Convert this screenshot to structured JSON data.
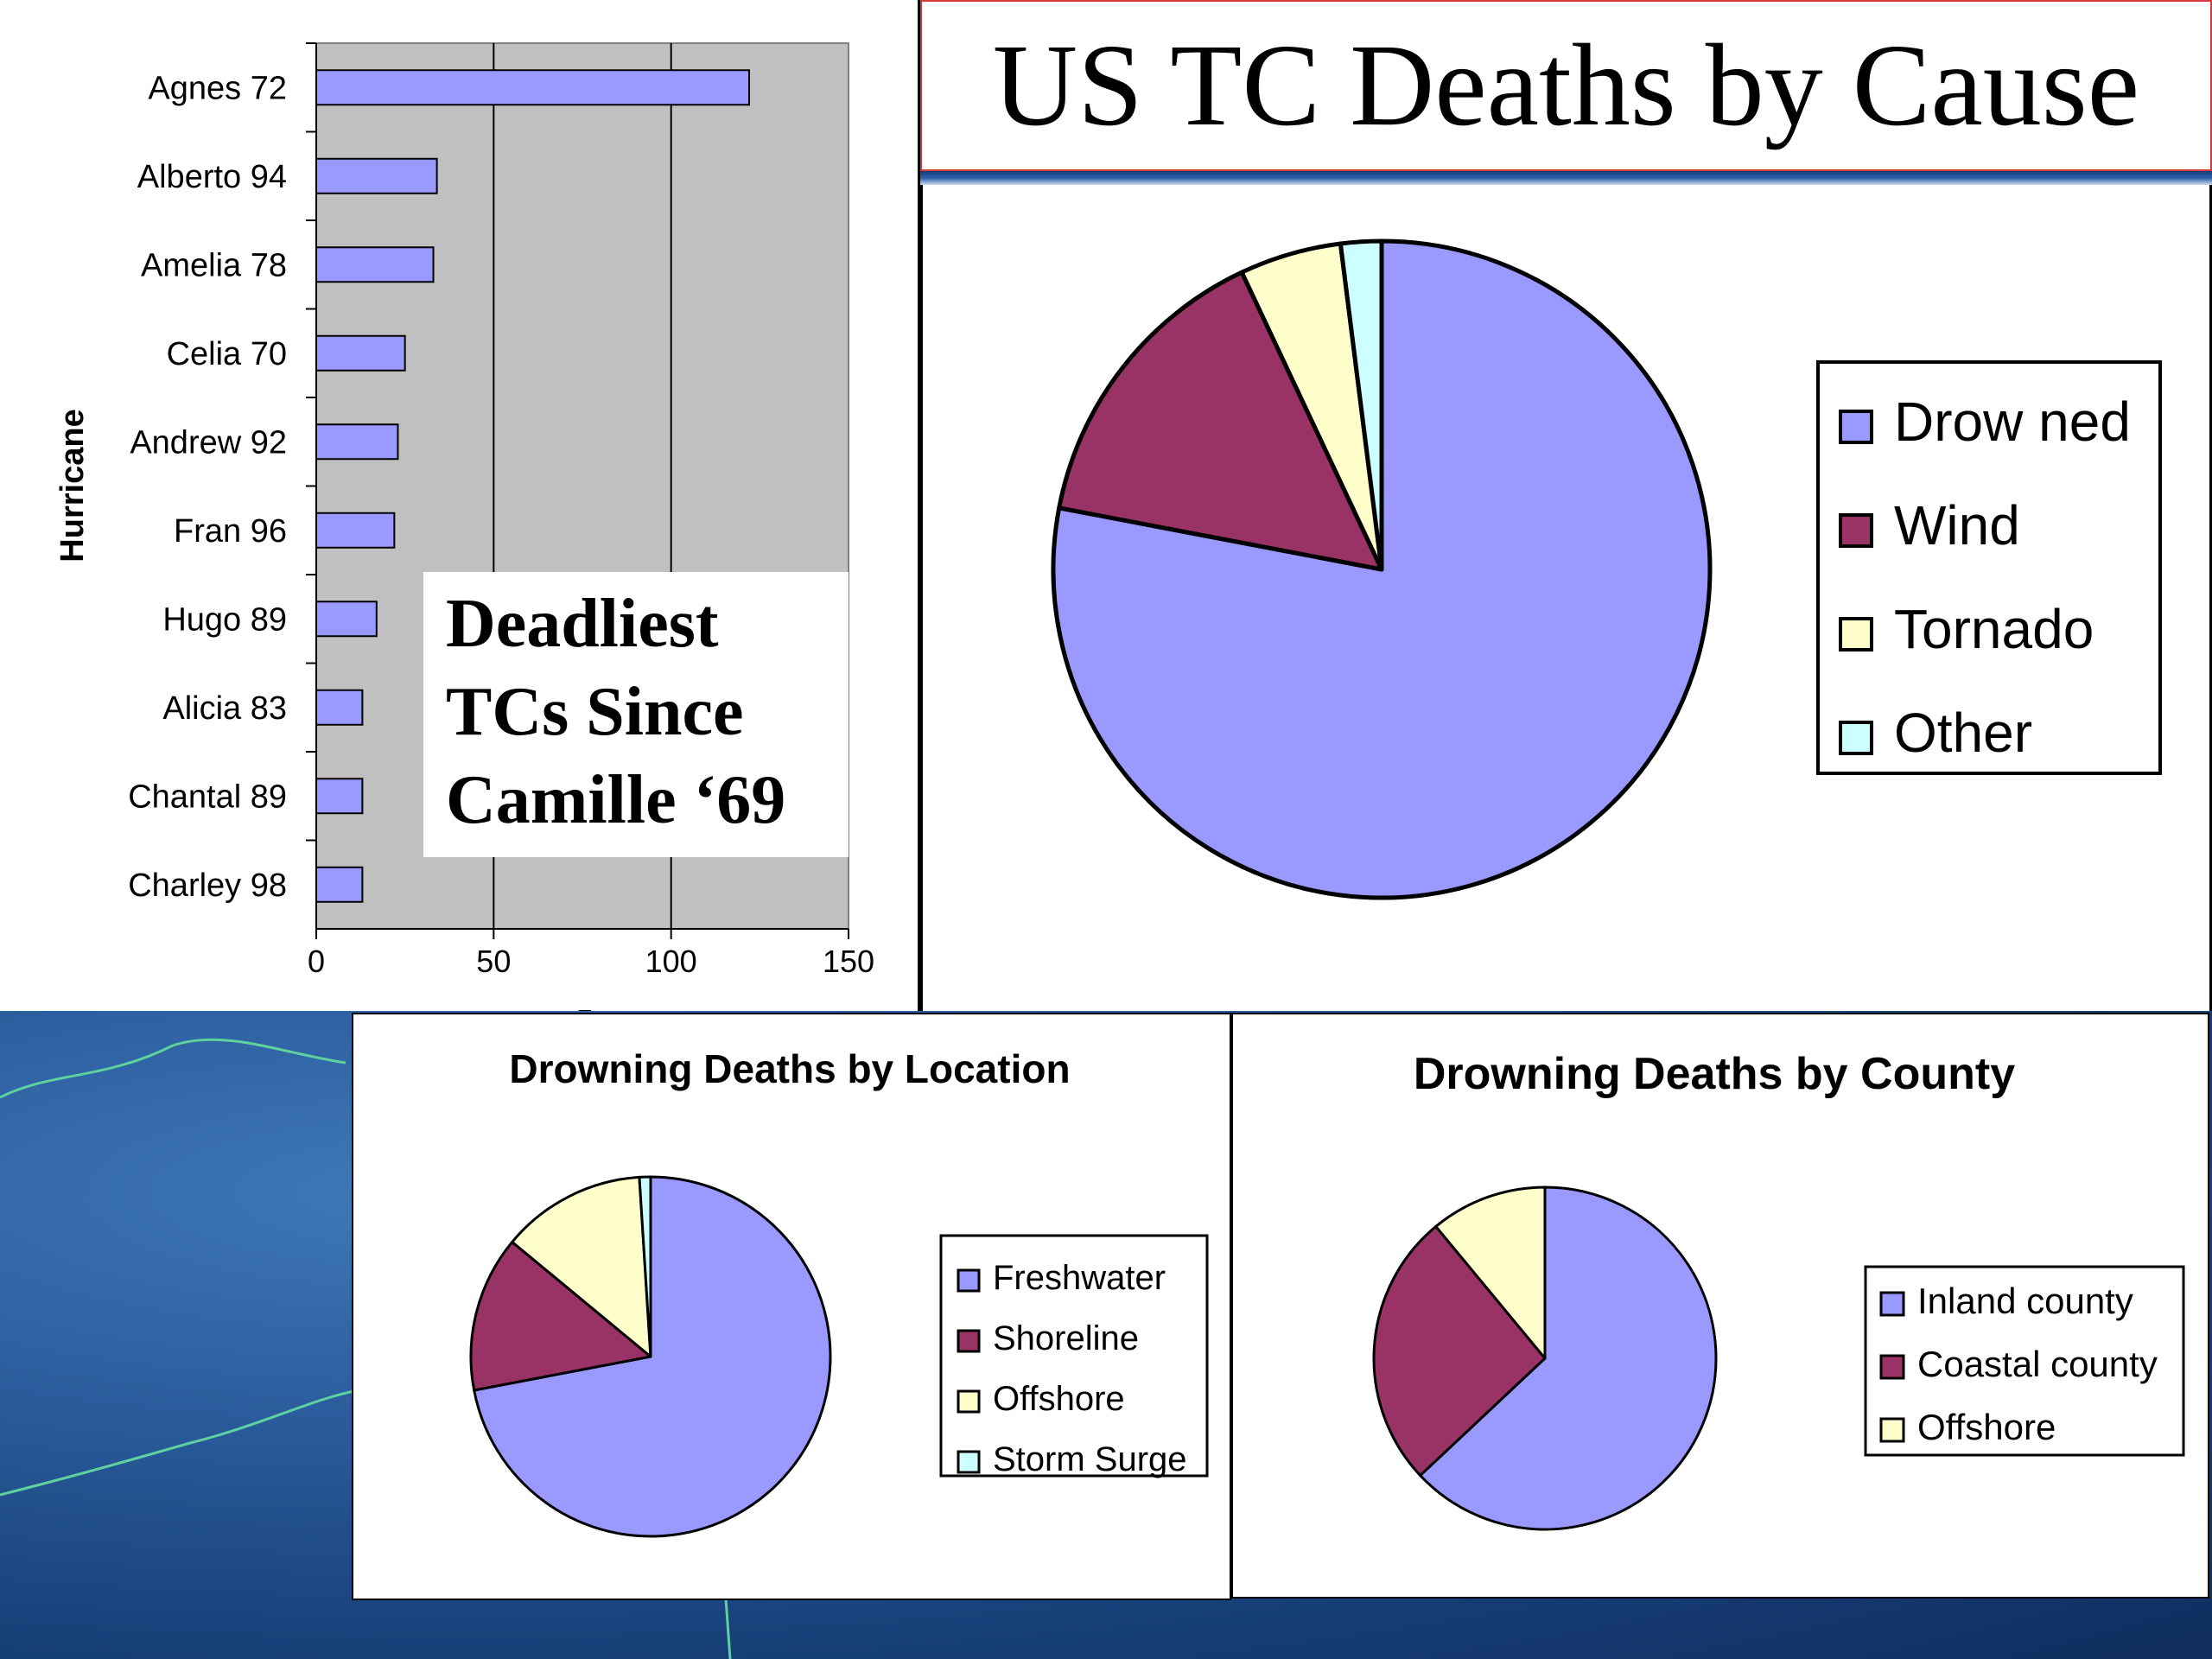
{
  "slide": {
    "title": "US TC Deaths by Cause"
  },
  "colors": {
    "periwinkle": "#9999ff",
    "plum": "#993366",
    "ivory": "#ffffcc",
    "light_cyan": "#ccffff",
    "plot_gray": "#c0c0c0"
  },
  "chart_data": [
    {
      "type": "bar",
      "orientation": "horizontal",
      "title": "",
      "annotation_lines": [
        "Deadliest",
        "TCs Since",
        "Camille ‘69"
      ],
      "xlabel": "Deaths",
      "ylabel": "Hurricane",
      "categories": [
        "Agnes 72",
        "Alberto 94",
        "Amelia 78",
        "Celia 70",
        "Andrew 92",
        "Fran 96",
        "Hugo 89",
        "Alicia 83",
        "Chantal 89",
        "Charley 98"
      ],
      "values": [
        122,
        34,
        33,
        25,
        23,
        22,
        17,
        13,
        13,
        13
      ],
      "xlim": [
        0,
        150
      ],
      "xticks": [
        0,
        50,
        100,
        150
      ],
      "grid": "vertical",
      "color": "#9999ff"
    },
    {
      "type": "pie",
      "title": "",
      "legend_position": "right",
      "labels": [
        "Drow ned",
        "Wind",
        "Tornado",
        "Other"
      ],
      "values": [
        78,
        15,
        5,
        2
      ],
      "colors": [
        "#9999ff",
        "#993366",
        "#ffffcc",
        "#ccffff"
      ]
    },
    {
      "type": "pie",
      "title": "Drowning Deaths by Location",
      "legend_position": "right",
      "labels": [
        "Freshwater",
        "Shoreline",
        "Offshore",
        "Storm Surge"
      ],
      "values": [
        72,
        14,
        13,
        1
      ],
      "colors": [
        "#9999ff",
        "#993366",
        "#ffffcc",
        "#ccffff"
      ]
    },
    {
      "type": "pie",
      "title": "Drowning Deaths by County",
      "legend_position": "right",
      "labels": [
        "Inland county",
        "Coastal county",
        "Offshore"
      ],
      "values": [
        63,
        26,
        11
      ],
      "colors": [
        "#9999ff",
        "#993366",
        "#ffffcc"
      ]
    }
  ]
}
